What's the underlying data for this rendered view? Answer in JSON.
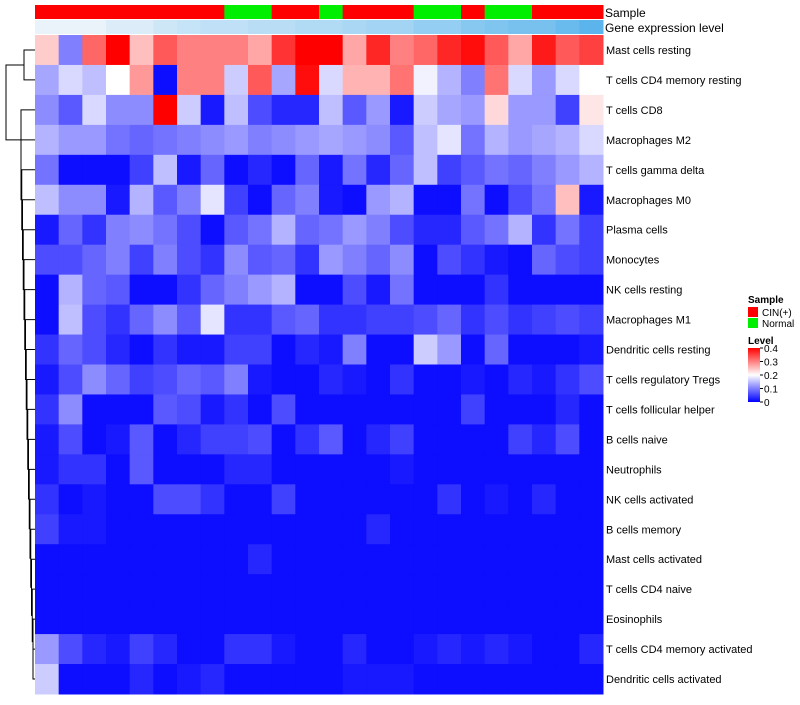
{
  "chart_data": {
    "type": "heatmap",
    "title": "",
    "xlabel": "",
    "ylabel": "",
    "rows": [
      "Mast cells resting",
      "T cells CD4 memory resting",
      "T cells CD8",
      "Macrophages M2",
      "T cells gamma delta",
      "Macrophages M0",
      "Plasma cells",
      "Monocytes",
      "NK cells resting",
      "Macrophages M1",
      "Dendritic cells resting",
      "T cells regulatory  Tregs",
      "T cells follicular helper",
      "B cells naive",
      "Neutrophils",
      "NK cells activated",
      "B cells memory",
      "Mast cells activated",
      "T cells CD4 naive",
      "Eosinophils",
      "T cells CD4 memory activated",
      "Dendritic cells activated"
    ],
    "column_sample": [
      "CIN(+)",
      "CIN(+)",
      "CIN(+)",
      "CIN(+)",
      "CIN(+)",
      "CIN(+)",
      "CIN(+)",
      "CIN(+)",
      "Normal",
      "Normal",
      "CIN(+)",
      "CIN(+)",
      "Normal",
      "CIN(+)",
      "CIN(+)",
      "CIN(+)",
      "Normal",
      "Normal",
      "CIN(+)",
      "Normal",
      "Normal",
      "CIN(+)",
      "CIN(+)",
      "CIN(+)"
    ],
    "column_expression": [
      0.1,
      0.1,
      0.1,
      0.12,
      0.12,
      0.14,
      0.15,
      0.16,
      0.16,
      0.17,
      0.17,
      0.18,
      0.18,
      0.19,
      0.2,
      0.2,
      0.22,
      0.22,
      0.24,
      0.25,
      0.26,
      0.26,
      0.28,
      0.3
    ],
    "values": [
      [
        0.24,
        0.1,
        0.32,
        0.4,
        0.25,
        0.33,
        0.3,
        0.3,
        0.3,
        0.27,
        0.36,
        0.4,
        0.4,
        0.27,
        0.37,
        0.3,
        0.32,
        0.37,
        0.39,
        0.33,
        0.27,
        0.38,
        0.33,
        0.35
      ],
      [
        0.13,
        0.17,
        0.15,
        0.2,
        0.28,
        0.01,
        0.3,
        0.3,
        0.16,
        0.33,
        0.13,
        0.39,
        0.17,
        0.26,
        0.26,
        0.31,
        0.19,
        0.14,
        0.1,
        0.31,
        0.17,
        0.12,
        0.17,
        0.2
      ],
      [
        0.11,
        0.07,
        0.17,
        0.11,
        0.11,
        0.4,
        0.16,
        0.02,
        0.15,
        0.06,
        0.03,
        0.03,
        0.15,
        0.07,
        0.12,
        0.02,
        0.16,
        0.13,
        0.12,
        0.23,
        0.12,
        0.12,
        0.05,
        0.22
      ],
      [
        0.14,
        0.12,
        0.12,
        0.09,
        0.08,
        0.09,
        0.1,
        0.11,
        0.12,
        0.1,
        0.11,
        0.12,
        0.13,
        0.12,
        0.11,
        0.07,
        0.15,
        0.18,
        0.09,
        0.14,
        0.12,
        0.13,
        0.14,
        0.17
      ],
      [
        0.09,
        0.01,
        0.01,
        0.01,
        0.05,
        0.15,
        0.02,
        0.08,
        0.01,
        0.03,
        0.01,
        0.08,
        0.02,
        0.09,
        0.03,
        0.08,
        0.15,
        0.05,
        0.07,
        0.09,
        0.08,
        0.1,
        0.12,
        0.14
      ],
      [
        0.15,
        0.11,
        0.11,
        0.02,
        0.14,
        0.07,
        0.1,
        0.18,
        0.05,
        0.01,
        0.08,
        0.1,
        0.02,
        0.01,
        0.12,
        0.14,
        0.01,
        0.01,
        0.09,
        0.01,
        0.06,
        0.09,
        0.25,
        0.02
      ],
      [
        0.02,
        0.08,
        0.04,
        0.1,
        0.11,
        0.09,
        0.06,
        0.01,
        0.07,
        0.09,
        0.14,
        0.08,
        0.09,
        0.12,
        0.1,
        0.06,
        0.03,
        0.03,
        0.07,
        0.09,
        0.14,
        0.04,
        0.09,
        0.05
      ],
      [
        0.06,
        0.06,
        0.08,
        0.1,
        0.05,
        0.1,
        0.06,
        0.04,
        0.11,
        0.07,
        0.08,
        0.04,
        0.12,
        0.1,
        0.08,
        0.11,
        0.01,
        0.06,
        0.04,
        0.02,
        0.01,
        0.08,
        0.06,
        0.05
      ],
      [
        0.01,
        0.14,
        0.08,
        0.07,
        0.01,
        0.01,
        0.04,
        0.08,
        0.1,
        0.12,
        0.14,
        0.01,
        0.01,
        0.06,
        0.02,
        0.09,
        0.01,
        0.01,
        0.01,
        0.04,
        0.01,
        0.01,
        0.01,
        0.01
      ],
      [
        0.01,
        0.15,
        0.06,
        0.04,
        0.08,
        0.11,
        0.07,
        0.18,
        0.04,
        0.04,
        0.07,
        0.08,
        0.04,
        0.04,
        0.05,
        0.05,
        0.06,
        0.08,
        0.04,
        0.06,
        0.04,
        0.05,
        0.06,
        0.05
      ],
      [
        0.04,
        0.08,
        0.06,
        0.03,
        0.01,
        0.04,
        0.02,
        0.02,
        0.05,
        0.05,
        0.01,
        0.03,
        0.02,
        0.1,
        0.01,
        0.01,
        0.16,
        0.12,
        0.01,
        0.08,
        0.01,
        0.01,
        0.01,
        0.02
      ],
      [
        0.02,
        0.06,
        0.11,
        0.08,
        0.05,
        0.06,
        0.08,
        0.07,
        0.1,
        0.02,
        0.01,
        0.01,
        0.03,
        0.02,
        0.01,
        0.04,
        0.01,
        0.01,
        0.02,
        0.01,
        0.03,
        0.02,
        0.04,
        0.06
      ],
      [
        0.04,
        0.11,
        0.01,
        0.01,
        0.01,
        0.07,
        0.06,
        0.02,
        0.04,
        0.01,
        0.06,
        0.01,
        0.01,
        0.01,
        0.01,
        0.01,
        0.01,
        0.01,
        0.05,
        0.01,
        0.01,
        0.01,
        0.03,
        0.01
      ],
      [
        0.02,
        0.06,
        0.01,
        0.02,
        0.07,
        0.01,
        0.03,
        0.05,
        0.05,
        0.06,
        0.01,
        0.04,
        0.07,
        0.01,
        0.03,
        0.05,
        0.01,
        0.01,
        0.01,
        0.01,
        0.05,
        0.03,
        0.06,
        0.01
      ],
      [
        0.02,
        0.04,
        0.04,
        0.01,
        0.07,
        0.01,
        0.01,
        0.01,
        0.03,
        0.03,
        0.01,
        0.01,
        0.01,
        0.01,
        0.01,
        0.02,
        0.01,
        0.01,
        0.01,
        0.01,
        0.01,
        0.01,
        0.01,
        0.01
      ],
      [
        0.04,
        0.01,
        0.02,
        0.01,
        0.01,
        0.06,
        0.06,
        0.04,
        0.01,
        0.01,
        0.05,
        0.01,
        0.01,
        0.01,
        0.01,
        0.01,
        0.01,
        0.04,
        0.01,
        0.02,
        0.01,
        0.03,
        0.01,
        0.01
      ],
      [
        0.05,
        0.02,
        0.02,
        0.01,
        0.01,
        0.01,
        0.01,
        0.01,
        0.01,
        0.01,
        0.01,
        0.01,
        0.01,
        0.01,
        0.03,
        0.01,
        0.01,
        0.01,
        0.01,
        0.01,
        0.01,
        0.01,
        0.01,
        0.01
      ],
      [
        0.01,
        0.01,
        0.01,
        0.01,
        0.01,
        0.01,
        0.01,
        0.01,
        0.01,
        0.03,
        0.01,
        0.01,
        0.01,
        0.01,
        0.01,
        0.01,
        0.01,
        0.01,
        0.01,
        0.01,
        0.01,
        0.01,
        0.01,
        0.01
      ],
      [
        0.01,
        0.01,
        0.01,
        0.01,
        0.01,
        0.01,
        0.01,
        0.01,
        0.01,
        0.01,
        0.01,
        0.01,
        0.01,
        0.01,
        0.01,
        0.01,
        0.01,
        0.01,
        0.01,
        0.01,
        0.01,
        0.01,
        0.01,
        0.01
      ],
      [
        0.01,
        0.01,
        0.01,
        0.01,
        0.01,
        0.01,
        0.01,
        0.01,
        0.01,
        0.01,
        0.01,
        0.01,
        0.01,
        0.01,
        0.01,
        0.01,
        0.01,
        0.01,
        0.01,
        0.01,
        0.01,
        0.01,
        0.01,
        0.01
      ],
      [
        0.12,
        0.06,
        0.03,
        0.02,
        0.05,
        0.03,
        0.01,
        0.01,
        0.04,
        0.04,
        0.02,
        0.01,
        0.01,
        0.03,
        0.01,
        0.01,
        0.02,
        0.03,
        0.02,
        0.03,
        0.02,
        0.01,
        0.01,
        0.03
      ],
      [
        0.16,
        0.01,
        0.01,
        0.01,
        0.03,
        0.01,
        0.02,
        0.03,
        0.01,
        0.01,
        0.01,
        0.01,
        0.01,
        0.02,
        0.02,
        0.02,
        0.01,
        0.01,
        0.01,
        0.01,
        0.01,
        0.01,
        0.01,
        0.01
      ]
    ],
    "value_range": [
      0,
      0.4
    ]
  },
  "annotation_labels": {
    "sample": "Sample",
    "expression": "Gene expression level"
  },
  "legend": {
    "sample_title": "Sample",
    "sample_items": [
      {
        "label": "CIN(+)",
        "color": "#ff0000"
      },
      {
        "label": "Normal",
        "color": "#00ee00"
      }
    ],
    "level_title": "Level",
    "level_ticks": [
      "0.4",
      "0.3",
      "0.2",
      "0.1",
      "0"
    ],
    "level_tick_values": [
      0.4,
      0.3,
      0.2,
      0.1,
      0
    ]
  },
  "colors": {
    "low": "#0000ff",
    "mid": "#ffffff",
    "high": "#ff0000",
    "expression_low": "#eaf3fa",
    "expression_high": "#5bb5ec"
  }
}
